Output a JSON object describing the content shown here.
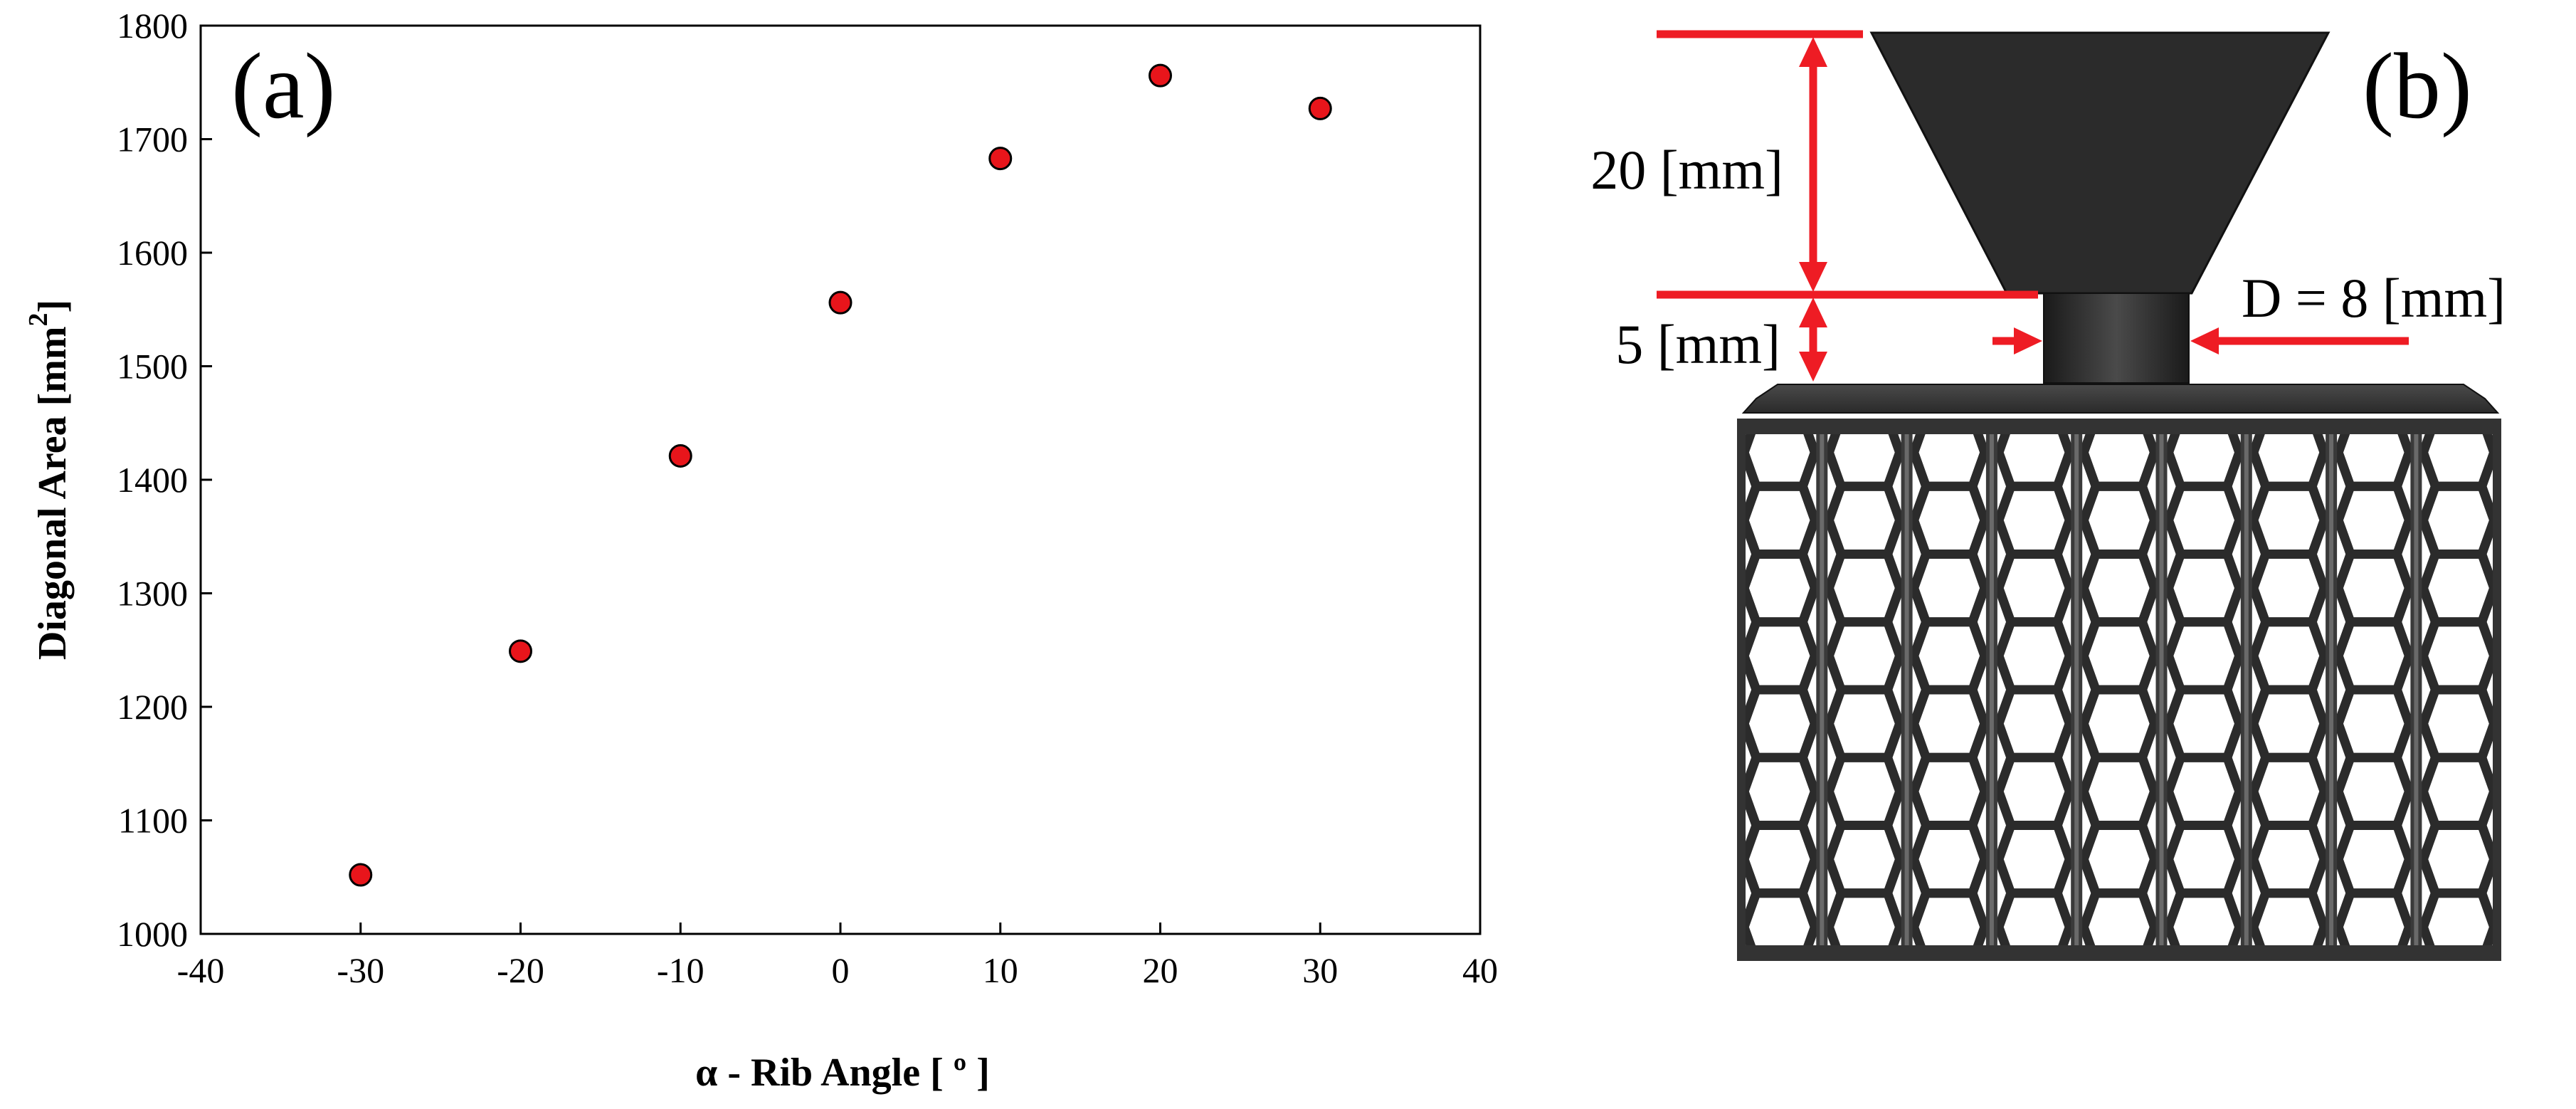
{
  "chart_data": {
    "type": "scatter",
    "panel_label": "(a)",
    "xlabel_prefix": "α - Rib Angle [ ",
    "xlabel_unit_symbol": "º",
    "xlabel_suffix": " ]",
    "ylabel_main": "Diagonal Area [mm",
    "ylabel_sup": "2",
    "ylabel_close": "]",
    "xlim": [
      -40,
      40
    ],
    "ylim": [
      1000,
      1800
    ],
    "x_ticks": [
      "-40",
      "-30",
      "-20",
      "-10",
      "0",
      "10",
      "20",
      "30",
      "40"
    ],
    "y_ticks": [
      "1000",
      "1100",
      "1200",
      "1300",
      "1400",
      "1500",
      "1600",
      "1700",
      "1800"
    ],
    "grid": false,
    "marker_color": "#e8151b",
    "series": [
      {
        "points": [
          {
            "x": -30,
            "y": 1052
          },
          {
            "x": -20,
            "y": 1249
          },
          {
            "x": -10,
            "y": 1421
          },
          {
            "x": 0,
            "y": 1556
          },
          {
            "x": 10,
            "y": 1683
          },
          {
            "x": 20,
            "y": 1756
          },
          {
            "x": 30,
            "y": 1727
          }
        ]
      }
    ]
  },
  "diagram": {
    "panel_label": "(b)",
    "dim_upper": "20 [mm]",
    "dim_lower": "5 [mm]",
    "dim_diameter": "D = 8 [mm]",
    "dimension_color": "#ee1c24",
    "part_color": "#2b2b2b"
  }
}
